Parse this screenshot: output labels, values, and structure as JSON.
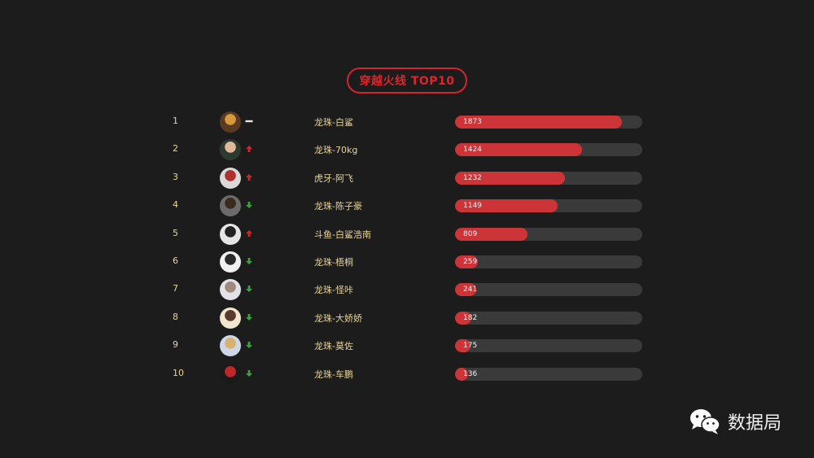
{
  "chart_data": {
    "type": "bar",
    "title": "穿越火线 TOP10",
    "xlim": [
      0,
      2100
    ],
    "rows": [
      {
        "rank": "1",
        "name": "龙珠-白鲨",
        "value": 1873,
        "trend": "same",
        "avatar_colors": [
          "#5a3a22",
          "#d29a3a"
        ]
      },
      {
        "rank": "2",
        "name": "龙珠-70kg",
        "value": 1424,
        "trend": "up",
        "avatar_colors": [
          "#2c3a2f",
          "#e0b89a"
        ]
      },
      {
        "rank": "3",
        "name": "虎牙-阿飞",
        "value": 1232,
        "trend": "up",
        "avatar_colors": [
          "#d9d9d9",
          "#b03030"
        ]
      },
      {
        "rank": "4",
        "name": "龙珠-陈子豪",
        "value": 1149,
        "trend": "down",
        "avatar_colors": [
          "#6b6b6b",
          "#3a2a20"
        ]
      },
      {
        "rank": "5",
        "name": "斗鱼-白鲨浩南",
        "value": 809,
        "trend": "up",
        "avatar_colors": [
          "#e5e5e5",
          "#222222"
        ]
      },
      {
        "rank": "6",
        "name": "龙珠-梧桐",
        "value": 259,
        "trend": "down",
        "avatar_colors": [
          "#f0f0f0",
          "#2a2a2a"
        ]
      },
      {
        "rank": "7",
        "name": "龙珠-怪咔",
        "value": 241,
        "trend": "down",
        "avatar_colors": [
          "#e2e2e8",
          "#a08a80"
        ]
      },
      {
        "rank": "8",
        "name": "龙珠-大娇娇",
        "value": 182,
        "trend": "down",
        "avatar_colors": [
          "#f1e6d0",
          "#5a3a2a"
        ]
      },
      {
        "rank": "9",
        "name": "龙珠-莫佐",
        "value": 175,
        "trend": "down",
        "avatar_colors": [
          "#cfd6e6",
          "#d8b070"
        ]
      },
      {
        "rank": "10",
        "name": "龙珠-车鹏",
        "value": 136,
        "trend": "down",
        "avatar_colors": [
          "#1a1a1a",
          "#c0262a"
        ]
      }
    ]
  },
  "colors": {
    "background": "#1c1c1c",
    "bar_fill": "#cc3438",
    "bar_track": "#3a3a3a",
    "trend_up": "#d0262c",
    "trend_down": "#3aa53a",
    "trend_same": "#e8e8e8",
    "label": "#e8d49a"
  },
  "watermark": {
    "icon": "wechat-icon",
    "text": "数据局"
  }
}
